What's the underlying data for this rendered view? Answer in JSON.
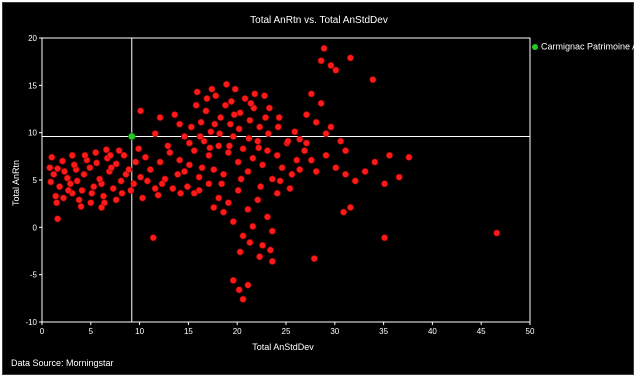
{
  "chart_data": {
    "type": "scatter",
    "title": "Total AnRtn vs. Total AnStdDev",
    "xlabel": "Total AnStdDev",
    "ylabel": "Total AnRtn",
    "xlim": [
      0,
      50
    ],
    "ylim": [
      -10,
      20
    ],
    "xticks": [
      0,
      5,
      10,
      15,
      20,
      25,
      30,
      35,
      40,
      45,
      50
    ],
    "yticks": [
      -10,
      -5,
      0,
      5,
      10,
      15,
      20
    ],
    "grid": false,
    "legend_position": "top-right",
    "reference_lines": {
      "x": 9.2,
      "y": 9.6
    },
    "series": [
      {
        "name": "",
        "color": "#ff1a1a",
        "points": [
          [
            1.2,
            5.6
          ],
          [
            2.6,
            5.2
          ],
          [
            1.8,
            4.3
          ],
          [
            3.5,
            6.1
          ],
          [
            4.1,
            3.9
          ],
          [
            1.4,
            3.3
          ],
          [
            0.9,
            4.8
          ],
          [
            5.6,
            6.8
          ],
          [
            6.1,
            4.6
          ],
          [
            2.1,
            7.0
          ],
          [
            3.8,
            2.9
          ],
          [
            6.9,
            5.9
          ],
          [
            7.6,
            6.7
          ],
          [
            8.1,
            4.9
          ],
          [
            5.1,
            3.6
          ],
          [
            4.6,
            7.1
          ],
          [
            2.9,
            4.6
          ],
          [
            6.4,
            2.6
          ],
          [
            1.6,
            6.2
          ],
          [
            5.9,
            5.1
          ],
          [
            7.1,
            6.3
          ],
          [
            3.1,
            3.6
          ],
          [
            8.6,
            5.6
          ],
          [
            9.6,
            6.9
          ],
          [
            10.1,
            5.3
          ],
          [
            10.6,
            7.4
          ],
          [
            11.1,
            6.1
          ],
          [
            9.1,
            3.9
          ],
          [
            12.1,
            6.9
          ],
          [
            12.6,
            5.1
          ],
          [
            13.1,
            7.9
          ],
          [
            11.6,
            4.1
          ],
          [
            10.3,
            3.1
          ],
          [
            12.9,
            8.6
          ],
          [
            7.9,
            8.1
          ],
          [
            8.4,
            7.6
          ],
          [
            9.9,
            8.3
          ],
          [
            1.6,
            0.9
          ],
          [
            6.1,
            2.1
          ],
          [
            4.3,
            5.6
          ],
          [
            2.3,
            5.9
          ],
          [
            3.3,
            6.6
          ],
          [
            4.9,
            6.3
          ],
          [
            5.3,
            4.3
          ],
          [
            6.7,
            7.3
          ],
          [
            7.3,
            4.1
          ],
          [
            8.9,
            6.1
          ],
          [
            3.6,
            4.9
          ],
          [
            2.7,
            3.9
          ],
          [
            0.8,
            6.3
          ],
          [
            1.0,
            7.4
          ],
          [
            1.5,
            2.6
          ],
          [
            2.2,
            3.1
          ],
          [
            4.0,
            2.2
          ],
          [
            5.0,
            2.6
          ],
          [
            6.3,
            3.3
          ],
          [
            7.6,
            2.9
          ],
          [
            8.2,
            3.6
          ],
          [
            9.4,
            4.6
          ],
          [
            10.8,
            4.9
          ],
          [
            11.9,
            3.4
          ],
          [
            12.3,
            4.6
          ],
          [
            13.4,
            4.1
          ],
          [
            14.2,
            3.6
          ],
          [
            11.4,
            -1.1
          ],
          [
            3.1,
            7.6
          ],
          [
            4.4,
            7.6
          ],
          [
            5.5,
            7.9
          ],
          [
            6.6,
            8.2
          ],
          [
            7.0,
            7.6
          ],
          [
            13.9,
            5.6
          ],
          [
            14.1,
            7.1
          ],
          [
            14.6,
            5.9
          ],
          [
            15.1,
            6.6
          ],
          [
            15.6,
            8.1
          ],
          [
            16.1,
            5.3
          ],
          [
            16.6,
            9.1
          ],
          [
            17.1,
            7.6
          ],
          [
            17.6,
            6.1
          ],
          [
            18.1,
            8.6
          ],
          [
            18.6,
            5.6
          ],
          [
            19.1,
            7.9
          ],
          [
            19.6,
            9.6
          ],
          [
            20.1,
            6.9
          ],
          [
            20.6,
            8.3
          ],
          [
            21.1,
            5.9
          ],
          [
            21.6,
            7.3
          ],
          [
            22.1,
            9.1
          ],
          [
            22.6,
            6.6
          ],
          [
            23.1,
            8.1
          ],
          [
            23.6,
            5.1
          ],
          [
            24.1,
            7.6
          ],
          [
            24.6,
            6.3
          ],
          [
            25.1,
            8.9
          ],
          [
            25.6,
            5.6
          ],
          [
            26.1,
            7.1
          ],
          [
            15.3,
            10.6
          ],
          [
            16.3,
            11.1
          ],
          [
            17.3,
            10.1
          ],
          [
            18.3,
            11.6
          ],
          [
            19.3,
            10.9
          ],
          [
            20.3,
            12.1
          ],
          [
            21.3,
            11.3
          ],
          [
            22.3,
            10.6
          ],
          [
            23.3,
            12.6
          ],
          [
            24.3,
            11.6
          ],
          [
            18.8,
            12.9
          ],
          [
            20.8,
            13.6
          ],
          [
            22.8,
            13.9
          ],
          [
            16.8,
            12.3
          ],
          [
            15.8,
            12.9
          ],
          [
            17.8,
            13.9
          ],
          [
            19.8,
            14.6
          ],
          [
            21.8,
            14.1
          ],
          [
            16.1,
            3.9
          ],
          [
            17.1,
            4.6
          ],
          [
            18.1,
            3.1
          ],
          [
            19.1,
            2.6
          ],
          [
            20.1,
            3.9
          ],
          [
            21.1,
            1.9
          ],
          [
            22.1,
            2.9
          ],
          [
            23.1,
            1.1
          ],
          [
            24.1,
            3.6
          ],
          [
            19.6,
            0.6
          ],
          [
            20.6,
            -0.9
          ],
          [
            21.6,
            0.1
          ],
          [
            22.6,
            -1.9
          ],
          [
            23.6,
            -0.4
          ],
          [
            20.3,
            -2.6
          ],
          [
            21.3,
            -1.6
          ],
          [
            22.3,
            -3.1
          ],
          [
            23.4,
            -2.4
          ],
          [
            19.6,
            -5.6
          ],
          [
            20.2,
            -6.6
          ],
          [
            20.6,
            -7.6
          ],
          [
            21.1,
            -6.1
          ],
          [
            23.6,
            -3.6
          ],
          [
            18.6,
            1.6
          ],
          [
            17.6,
            2.1
          ],
          [
            15.6,
            3.6
          ],
          [
            14.9,
            4.3
          ],
          [
            16.4,
            6.3
          ],
          [
            18.4,
            4.6
          ],
          [
            20.4,
            5.1
          ],
          [
            22.4,
            4.3
          ],
          [
            24.4,
            4.9
          ],
          [
            25.4,
            4.1
          ],
          [
            26.4,
            6.1
          ],
          [
            27.1,
            8.9
          ],
          [
            27.6,
            7.1
          ],
          [
            28.1,
            5.9
          ],
          [
            29.1,
            7.6
          ],
          [
            30.1,
            6.3
          ],
          [
            31.1,
            5.6
          ],
          [
            32.1,
            4.9
          ],
          [
            33.1,
            5.9
          ],
          [
            34.1,
            6.9
          ],
          [
            35.1,
            4.6
          ],
          [
            35.6,
            7.6
          ],
          [
            36.6,
            5.3
          ],
          [
            37.6,
            7.4
          ],
          [
            27.6,
            14.1
          ],
          [
            28.6,
            13.1
          ],
          [
            28.1,
            11.1
          ],
          [
            29.1,
            9.9
          ],
          [
            28.6,
            17.6
          ],
          [
            28.9,
            18.9
          ],
          [
            29.6,
            17.1
          ],
          [
            30.1,
            16.6
          ],
          [
            31.6,
            17.9
          ],
          [
            33.9,
            15.6
          ],
          [
            27.1,
            11.9
          ],
          [
            29.6,
            10.6
          ],
          [
            30.6,
            9.1
          ],
          [
            31.1,
            8.1
          ],
          [
            31.6,
            2.1
          ],
          [
            30.9,
            1.6
          ],
          [
            35.1,
            -1.1
          ],
          [
            46.6,
            -0.6
          ],
          [
            27.9,
            -3.3
          ],
          [
            15.1,
            8.9
          ],
          [
            16.2,
            9.6
          ],
          [
            17.2,
            8.4
          ],
          [
            18.2,
            9.9
          ],
          [
            19.2,
            8.6
          ],
          [
            20.2,
            10.4
          ],
          [
            21.2,
            9.4
          ],
          [
            22.2,
            8.4
          ],
          [
            23.2,
            9.9
          ],
          [
            24.2,
            10.6
          ],
          [
            25.2,
            9.1
          ],
          [
            17.7,
            10.9
          ],
          [
            19.7,
            11.9
          ],
          [
            21.7,
            12.6
          ],
          [
            14.6,
            9.6
          ],
          [
            14.1,
            10.9
          ],
          [
            13.6,
            11.9
          ],
          [
            12.1,
            11.6
          ],
          [
            11.6,
            9.9
          ],
          [
            10.1,
            12.3
          ],
          [
            15.9,
            14.3
          ],
          [
            17.4,
            14.6
          ],
          [
            18.9,
            15.1
          ],
          [
            16.9,
            13.6
          ],
          [
            19.4,
            13.3
          ],
          [
            21.4,
            13.1
          ],
          [
            22.9,
            11.6
          ],
          [
            25.9,
            10.1
          ],
          [
            26.4,
            9.3
          ],
          [
            26.9,
            8.1
          ]
        ]
      },
      {
        "name": "Carmignac Patrimoine A",
        "color": "#22cc22",
        "points": [
          [
            9.2,
            9.6
          ]
        ]
      }
    ],
    "data_source": "Data Source: Morningstar"
  }
}
